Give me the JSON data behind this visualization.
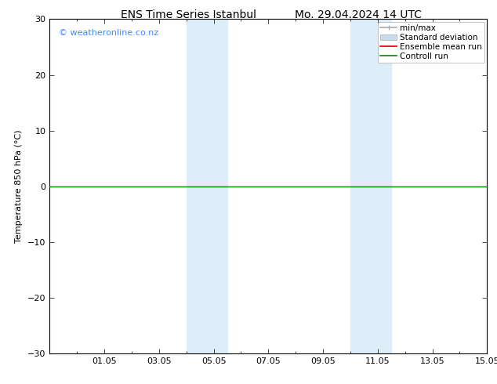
{
  "title_left": "ENS Time Series Istanbul",
  "title_right": "Mo. 29.04.2024 14 UTC",
  "ylabel": "Temperature 850 hPa (°C)",
  "watermark": "© weatheronline.co.nz",
  "watermark_color": "#4488ff",
  "ylim": [
    -30,
    30
  ],
  "yticks": [
    -30,
    -20,
    -10,
    0,
    10,
    20,
    30
  ],
  "x_days": 16,
  "xtick_labels": [
    "01.05",
    "03.05",
    "05.05",
    "07.05",
    "09.05",
    "11.05",
    "13.05",
    "15.05"
  ],
  "xtick_positions": [
    2,
    4,
    6,
    8,
    10,
    12,
    14,
    16
  ],
  "shaded_bands": [
    {
      "x_start": 5.0,
      "x_end": 6.5
    },
    {
      "x_start": 11.0,
      "x_end": 12.5
    }
  ],
  "shaded_color": "#ddeef8",
  "control_run_y": 0.0,
  "ensemble_mean_y": 0.0,
  "control_run_color": "#008800",
  "ensemble_mean_color": "#cc0000",
  "minmax_color": "#aaaaaa",
  "stddev_color": "#c8ddf0",
  "background_color": "#ffffff",
  "plot_bg_color": "#ffffff",
  "legend_labels": [
    "min/max",
    "Standard deviation",
    "Ensemble mean run",
    "Controll run"
  ],
  "font_size_title": 10,
  "font_size_ticks": 8,
  "font_size_legend": 7.5,
  "font_size_ylabel": 8,
  "font_size_watermark": 8
}
